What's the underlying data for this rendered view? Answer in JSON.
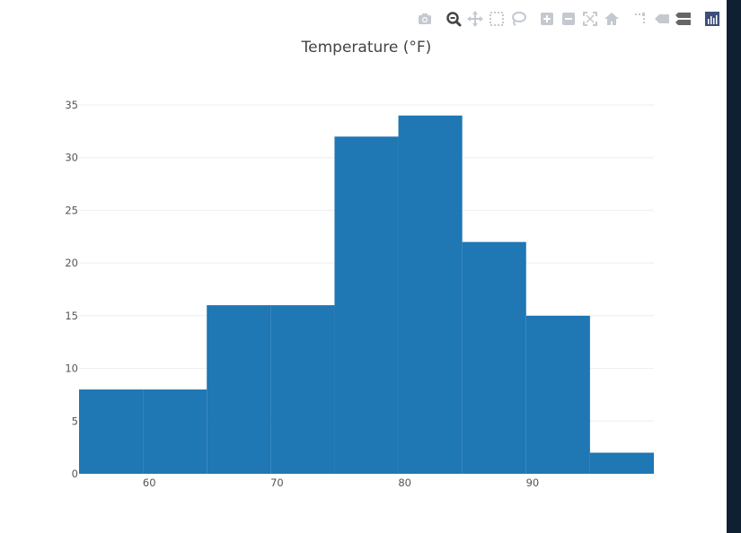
{
  "chart_data": {
    "type": "histogram",
    "title": "Temperature (°F)",
    "xlabel": "",
    "ylabel": "",
    "bin_size": 5,
    "bins": [
      {
        "start": 54.5,
        "end": 59.5,
        "count": 8
      },
      {
        "start": 59.5,
        "end": 64.5,
        "count": 8
      },
      {
        "start": 64.5,
        "end": 69.5,
        "count": 16
      },
      {
        "start": 69.5,
        "end": 74.5,
        "count": 16
      },
      {
        "start": 74.5,
        "end": 79.5,
        "count": 32
      },
      {
        "start": 79.5,
        "end": 84.5,
        "count": 34
      },
      {
        "start": 84.5,
        "end": 89.5,
        "count": 22
      },
      {
        "start": 89.5,
        "end": 94.5,
        "count": 15
      },
      {
        "start": 94.5,
        "end": 99.5,
        "count": 2
      }
    ],
    "xlim": [
      54.5,
      99.5
    ],
    "ylim": [
      0,
      35
    ],
    "x_ticks": [
      60,
      70,
      80,
      90
    ],
    "y_ticks": [
      0,
      5,
      10,
      15,
      20,
      25,
      30,
      35
    ],
    "grid": "horizontal",
    "bar_color": "#1f77b4"
  },
  "modebar": {
    "buttons": [
      "camera-icon",
      "zoom-icon",
      "pan-icon",
      "box-select-icon",
      "lasso-icon",
      "zoom-in-icon",
      "zoom-out-icon",
      "autoscale-icon",
      "reset-axes-icon",
      "spike-lines-icon",
      "hover-closest-icon",
      "hover-compare-icon",
      "plotly-logo-icon"
    ],
    "active_button": "zoom-icon",
    "colors": {
      "inactive": "#c4c9d0",
      "active": "#444444",
      "logo_bg": "#3b4f7a"
    }
  },
  "colors": {
    "grid": "#eeeeee",
    "text": "#444444",
    "background": "#ffffff"
  }
}
